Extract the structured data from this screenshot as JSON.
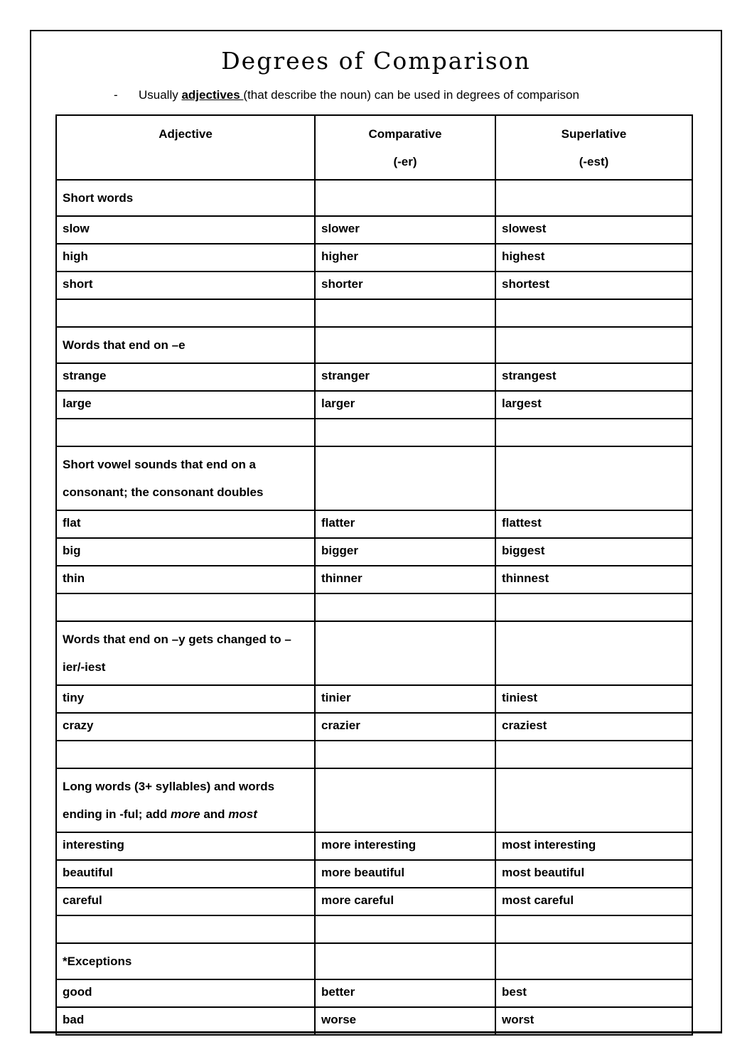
{
  "page": {
    "title": "Degrees of Comparison"
  },
  "intro": {
    "bullet": "-",
    "parts": [
      {
        "text": "Usually "
      },
      {
        "text": "adjectives ",
        "bold": true,
        "underline": true
      },
      {
        "text": "(that describe the noun) can be used in degrees of comparison"
      }
    ]
  },
  "table": {
    "headers": [
      {
        "line1": "Adjective",
        "line2": ""
      },
      {
        "line1": "Comparative",
        "line2": "(-er)"
      },
      {
        "line1": "Superlative",
        "line2": "(-est)"
      }
    ],
    "rows": [
      {
        "type": "section",
        "parts": [
          {
            "text": "Short words"
          }
        ]
      },
      {
        "type": "data",
        "cells": [
          "slow",
          "slower",
          "slowest"
        ]
      },
      {
        "type": "data",
        "cells": [
          "high",
          "higher",
          "highest"
        ]
      },
      {
        "type": "data",
        "cells": [
          "short",
          "shorter",
          "shortest"
        ]
      },
      {
        "type": "blank"
      },
      {
        "type": "section",
        "parts": [
          {
            "text": "Words that end on –e"
          }
        ]
      },
      {
        "type": "data",
        "cells": [
          "strange",
          "stranger",
          "strangest"
        ]
      },
      {
        "type": "data",
        "cells": [
          "large",
          "larger",
          "largest"
        ]
      },
      {
        "type": "blank"
      },
      {
        "type": "section",
        "tall": true,
        "parts": [
          {
            "text": "Short vowel sounds that end on a consonant; the consonant doubles"
          }
        ]
      },
      {
        "type": "data",
        "cells": [
          "flat",
          "flatter",
          "flattest"
        ]
      },
      {
        "type": "data",
        "cells": [
          "big",
          "bigger",
          "biggest"
        ]
      },
      {
        "type": "data",
        "cells": [
          "thin",
          "thinner",
          "thinnest"
        ]
      },
      {
        "type": "blank"
      },
      {
        "type": "section",
        "tall": true,
        "parts": [
          {
            "text": "Words that end on –y gets changed to –ier/-iest"
          }
        ]
      },
      {
        "type": "data",
        "cells": [
          "tiny",
          "tinier",
          "tiniest"
        ]
      },
      {
        "type": "data",
        "cells": [
          "crazy",
          "crazier",
          "craziest"
        ]
      },
      {
        "type": "blank"
      },
      {
        "type": "section",
        "tall": true,
        "parts": [
          {
            "text": "Long words (3+ syllables) and words ending in -ful; add "
          },
          {
            "text": "more",
            "italic": true
          },
          {
            "text": " and "
          },
          {
            "text": "most",
            "italic": true
          }
        ]
      },
      {
        "type": "data",
        "cells": [
          "interesting",
          "more interesting",
          "most interesting"
        ]
      },
      {
        "type": "data",
        "cells": [
          "beautiful",
          "more beautiful",
          "most beautiful"
        ]
      },
      {
        "type": "data",
        "cells": [
          "careful",
          "more careful",
          "most careful"
        ]
      },
      {
        "type": "blank"
      },
      {
        "type": "section",
        "parts": [
          {
            "text": "*Exceptions"
          }
        ]
      },
      {
        "type": "data",
        "cells": [
          "good",
          "better",
          "best"
        ]
      },
      {
        "type": "data",
        "cells": [
          "bad",
          "worse",
          "worst"
        ]
      }
    ]
  }
}
